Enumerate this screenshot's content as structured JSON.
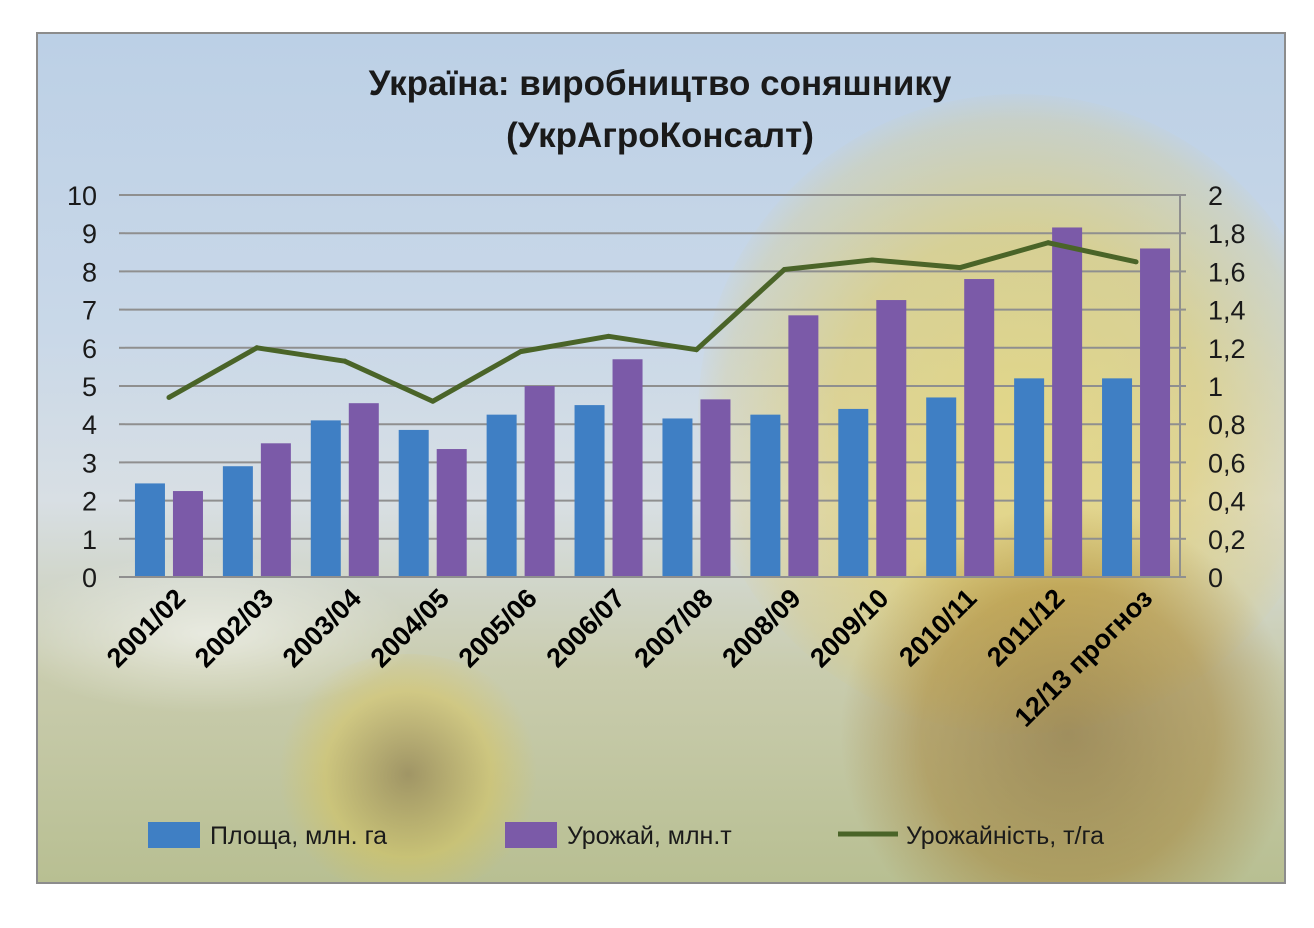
{
  "chart_data": {
    "type": "bar",
    "title": "Україна: виробництво соняшнику",
    "subtitle": "(УкрАгроКонсалт)",
    "categories": [
      "2001/02",
      "2002/03",
      "2003/04",
      "2004/05",
      "2005/06",
      "2006/07",
      "2007/08",
      "2008/09",
      "2009/10",
      "2010/11",
      "2011/12",
      "12/13 прогноз"
    ],
    "series": [
      {
        "name": "Площа, млн. га",
        "type": "bar",
        "axis": "left",
        "color": "#3f7fc4",
        "values": [
          2.45,
          2.9,
          4.1,
          3.85,
          4.25,
          4.5,
          4.15,
          4.25,
          4.4,
          4.7,
          5.2,
          5.2
        ]
      },
      {
        "name": "Урожай, млн.т",
        "type": "bar",
        "axis": "left",
        "color": "#7b5aa8",
        "values": [
          2.25,
          3.5,
          4.55,
          3.35,
          5.0,
          5.7,
          4.65,
          6.85,
          7.25,
          7.8,
          9.15,
          8.6
        ]
      },
      {
        "name": "Урожайність, т/га",
        "type": "line",
        "axis": "right",
        "color": "#4a6428",
        "values": [
          0.94,
          1.2,
          1.13,
          0.92,
          1.18,
          1.26,
          1.19,
          1.61,
          1.66,
          1.62,
          1.75,
          1.65
        ]
      }
    ],
    "y_left": {
      "min": 0,
      "max": 10,
      "ticks": [
        "0",
        "1",
        "2",
        "3",
        "4",
        "5",
        "6",
        "7",
        "8",
        "9",
        "10"
      ]
    },
    "y_right": {
      "min": 0,
      "max": 2,
      "ticks": [
        "0",
        "0,2",
        "0,4",
        "0,6",
        "0,8",
        "1",
        "1,2",
        "1,4",
        "1,6",
        "1,8",
        "2"
      ]
    },
    "grid": true,
    "legend": "bottom"
  }
}
